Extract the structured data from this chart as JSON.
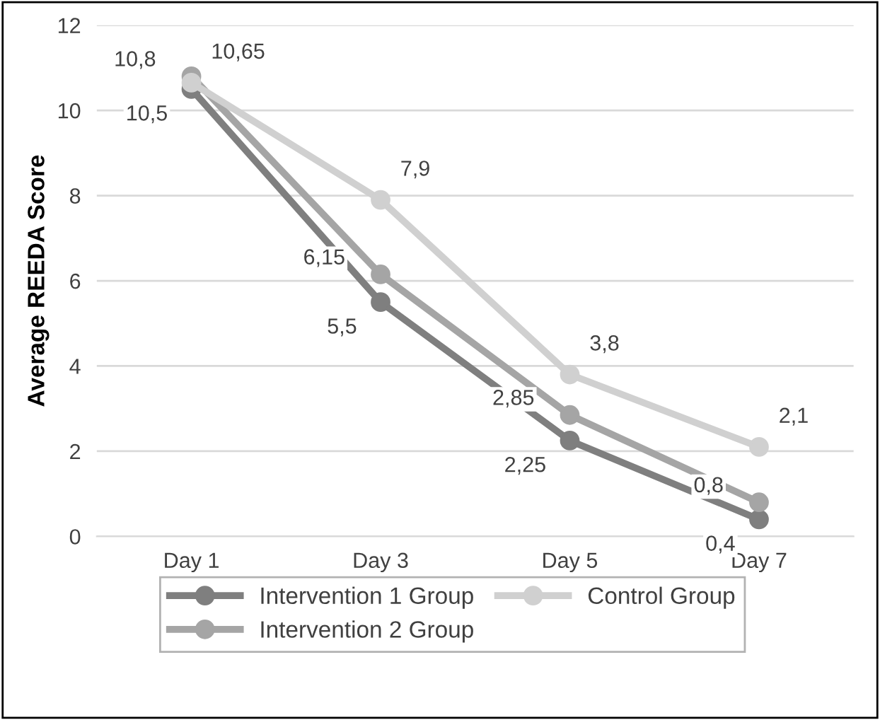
{
  "chart_data": {
    "type": "line",
    "ylabel": "Average REEDA Score",
    "categories": [
      "Day 1",
      "Day 3",
      "Day 5",
      "Day 7"
    ],
    "series": [
      {
        "name": "Intervention 1 Group",
        "color": "#7f7f7f",
        "values": [
          10.5,
          5.5,
          2.25,
          0.4
        ],
        "value_labels": [
          "10,5",
          "5,5",
          "2,25",
          "0,4"
        ]
      },
      {
        "name": "Intervention 2 Group",
        "color": "#a5a5a5",
        "values": [
          10.8,
          6.15,
          2.85,
          0.8
        ],
        "value_labels": [
          "10,8",
          "6,15",
          "2,85",
          "0,8"
        ]
      },
      {
        "name": "Control Group",
        "color": "#d0d0d0",
        "values": [
          10.65,
          7.9,
          3.8,
          2.1
        ],
        "value_labels": [
          "10,65",
          "7,9",
          "3,8",
          "2,1"
        ]
      }
    ],
    "ylim": [
      0,
      12
    ],
    "yticks": [
      0,
      2,
      4,
      6,
      8,
      10,
      12
    ],
    "grid": "y",
    "legend": "bottom",
    "marker": "circle",
    "line_style": "solid"
  }
}
